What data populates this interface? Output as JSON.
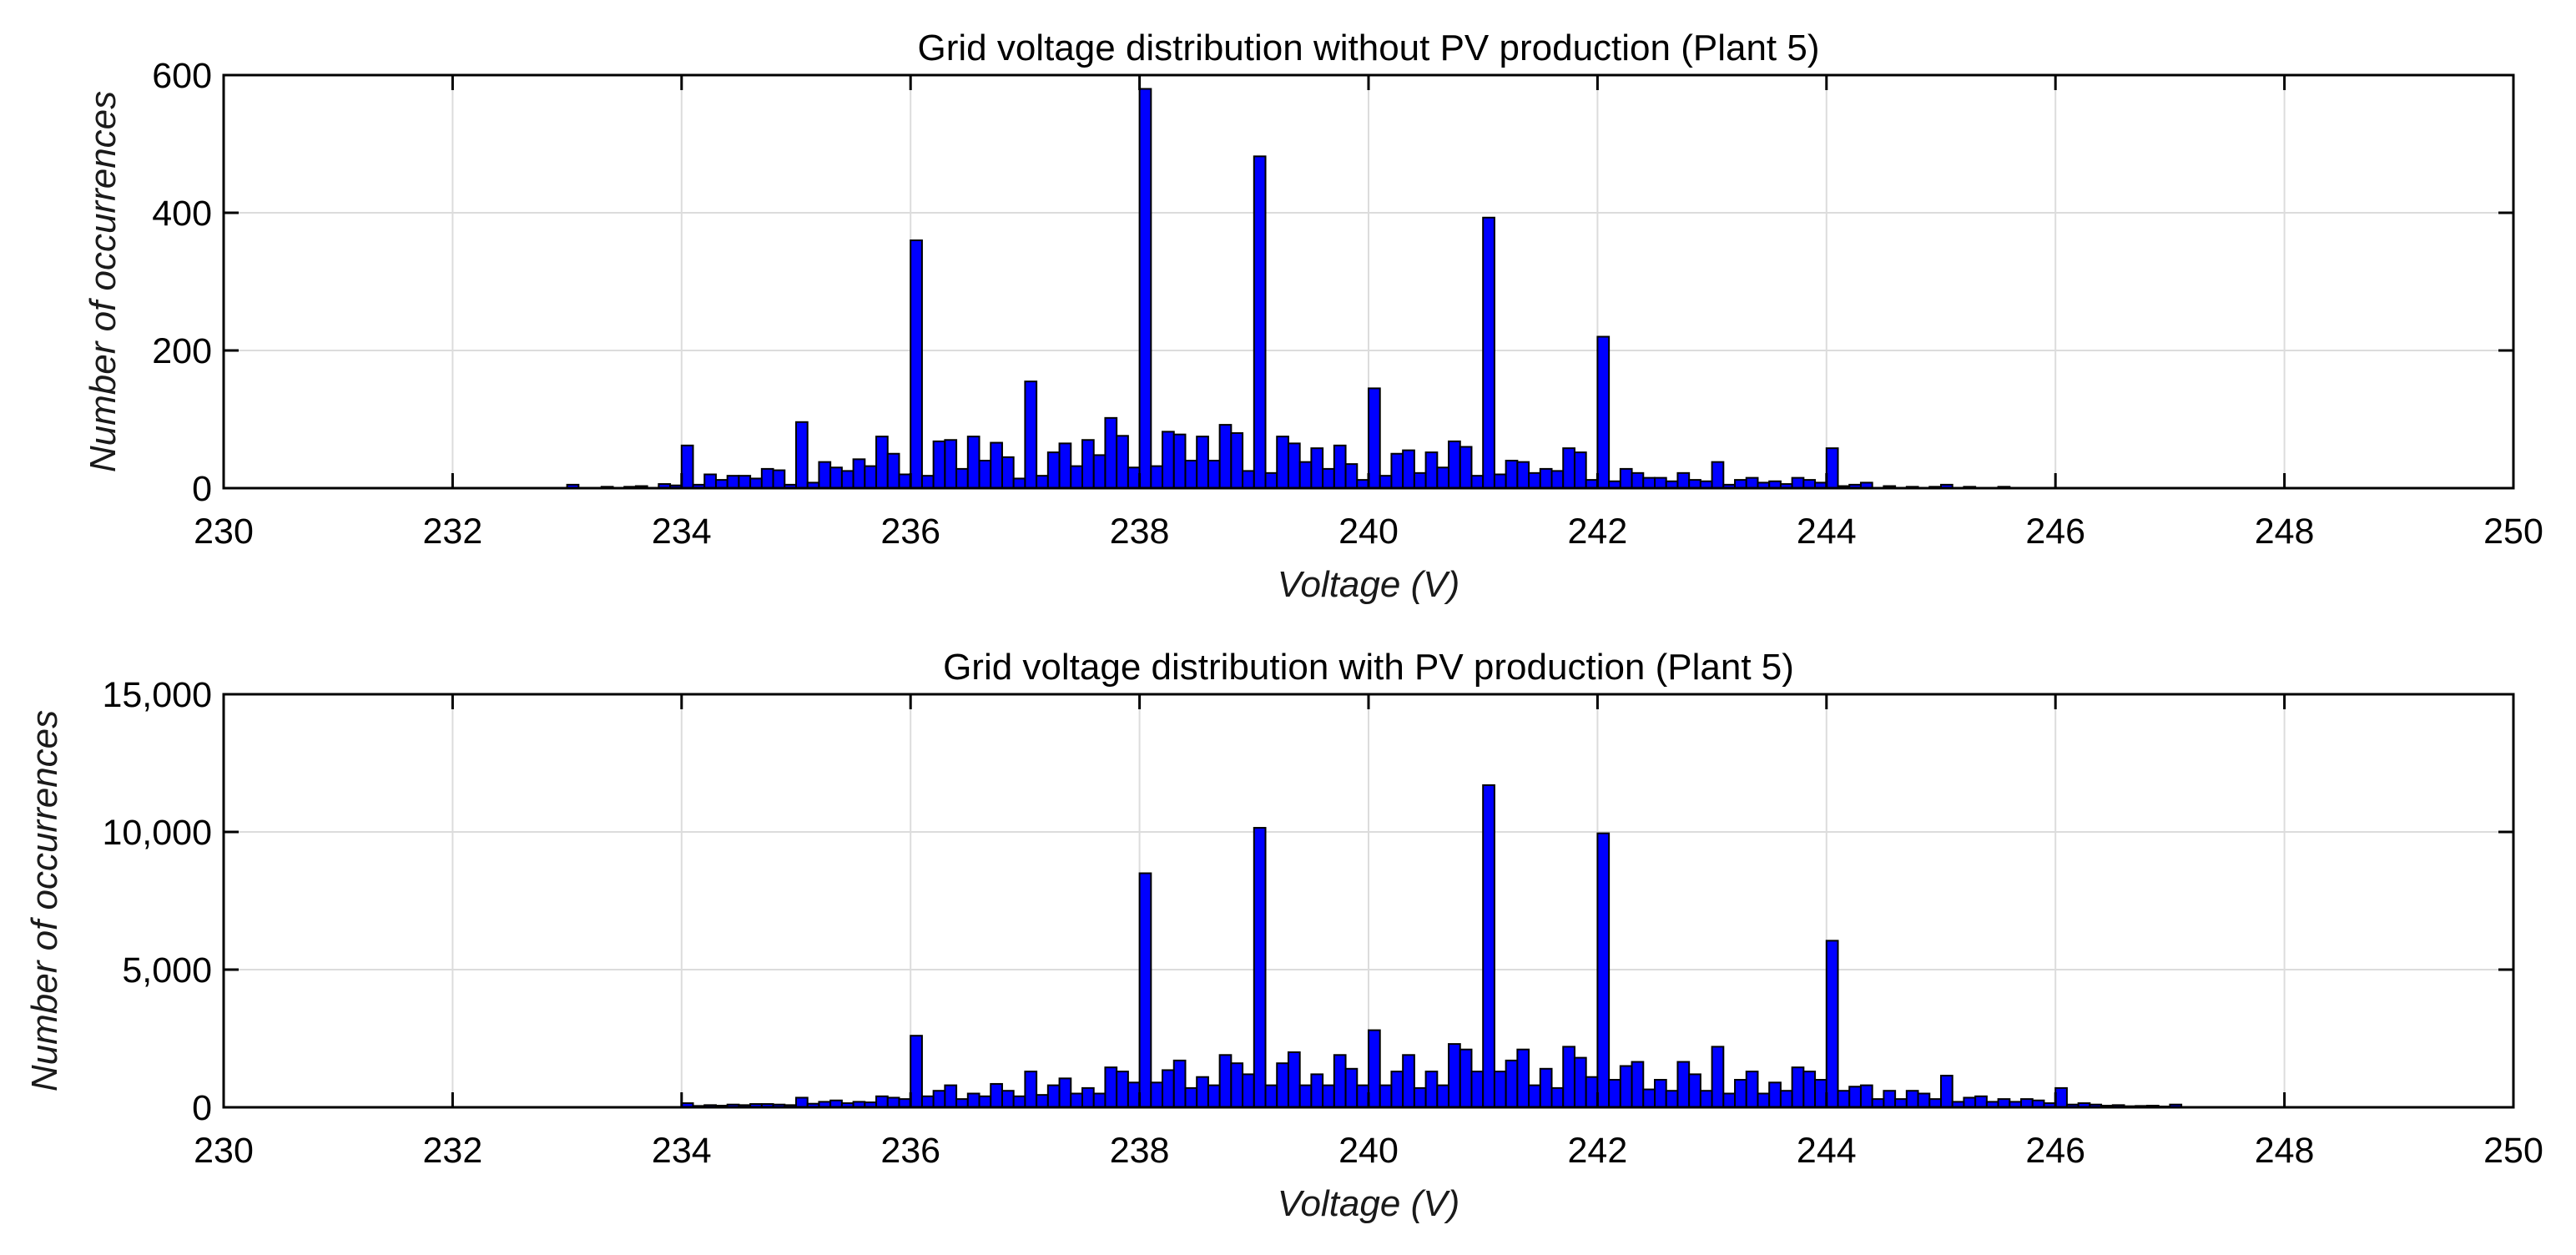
{
  "chart_data": [
    {
      "type": "bar",
      "title": "Grid voltage distribution without PV production (Plant 5)",
      "xlabel": "Voltage (V)",
      "ylabel": "Number of occurrences",
      "xlim": [
        230,
        250
      ],
      "ylim": [
        0,
        600
      ],
      "xticks": [
        "230",
        "232",
        "234",
        "236",
        "238",
        "240",
        "242",
        "244",
        "246",
        "248",
        "250"
      ],
      "yticks": [
        "0",
        "200",
        "400",
        "600"
      ],
      "grid": true,
      "bin_width": 0.1,
      "series": [
        {
          "name": "occurrences",
          "x": [
            233,
            233.3,
            233.5,
            233.6,
            233.8,
            233.9,
            234,
            234.1,
            234.2,
            234.3,
            234.4,
            234.5,
            234.6,
            234.7,
            234.8,
            234.9,
            235,
            235.1,
            235.2,
            235.3,
            235.4,
            235.5,
            235.6,
            235.7,
            235.8,
            235.9,
            236,
            236.1,
            236.2,
            236.3,
            236.4,
            236.5,
            236.6,
            236.7,
            236.8,
            236.9,
            237,
            237.1,
            237.2,
            237.3,
            237.4,
            237.5,
            237.6,
            237.7,
            237.8,
            237.9,
            238,
            238.1,
            238.2,
            238.3,
            238.4,
            238.5,
            238.6,
            238.7,
            238.8,
            238.9,
            239,
            239.1,
            239.2,
            239.3,
            239.4,
            239.5,
            239.6,
            239.7,
            239.8,
            239.9,
            240,
            240.1,
            240.2,
            240.3,
            240.4,
            240.5,
            240.6,
            240.7,
            240.8,
            240.9,
            241,
            241.1,
            241.2,
            241.3,
            241.4,
            241.5,
            241.6,
            241.7,
            241.8,
            241.9,
            242,
            242.1,
            242.2,
            242.3,
            242.4,
            242.5,
            242.6,
            242.7,
            242.8,
            242.9,
            243,
            243.1,
            243.2,
            243.3,
            243.4,
            243.5,
            243.6,
            243.7,
            243.8,
            243.9,
            244,
            244.1,
            244.2,
            244.3,
            244.5,
            244.7,
            244.9,
            245,
            245.2,
            245.5
          ],
          "values": [
            5,
            2,
            2,
            3,
            6,
            4,
            62,
            5,
            20,
            12,
            18,
            18,
            14,
            28,
            26,
            5,
            96,
            8,
            38,
            30,
            25,
            42,
            32,
            75,
            50,
            20,
            360,
            18,
            68,
            70,
            28,
            75,
            40,
            66,
            45,
            14,
            155,
            18,
            52,
            65,
            32,
            70,
            48,
            102,
            76,
            30,
            580,
            32,
            82,
            78,
            40,
            75,
            40,
            92,
            80,
            25,
            482,
            22,
            75,
            65,
            38,
            58,
            28,
            62,
            35,
            12,
            145,
            18,
            50,
            55,
            22,
            52,
            30,
            68,
            60,
            18,
            393,
            20,
            40,
            38,
            22,
            28,
            25,
            58,
            52,
            12,
            220,
            10,
            28,
            22,
            15,
            15,
            10,
            22,
            12,
            10,
            38,
            5,
            12,
            15,
            8,
            10,
            6,
            15,
            12,
            8,
            58,
            3,
            5,
            8,
            3,
            2,
            2,
            5,
            2,
            2
          ]
        }
      ]
    },
    {
      "type": "bar",
      "title": "Grid voltage distribution with PV production (Plant 5)",
      "xlabel": "Voltage (V)",
      "ylabel": "Number of occurrences",
      "xlim": [
        230,
        250
      ],
      "ylim": [
        0,
        15000
      ],
      "xticks": [
        "230",
        "232",
        "234",
        "236",
        "238",
        "240",
        "242",
        "244",
        "246",
        "248",
        "250"
      ],
      "yticks": [
        "0",
        "5,000",
        "10,000",
        "15,000"
      ],
      "grid": true,
      "bin_width": 0.1,
      "series": [
        {
          "name": "occurrences",
          "x": [
            234,
            234.1,
            234.2,
            234.3,
            234.4,
            234.5,
            234.6,
            234.7,
            234.8,
            234.9,
            235,
            235.1,
            235.2,
            235.3,
            235.4,
            235.5,
            235.6,
            235.7,
            235.8,
            235.9,
            236,
            236.1,
            236.2,
            236.3,
            236.4,
            236.5,
            236.6,
            236.7,
            236.8,
            236.9,
            237,
            237.1,
            237.2,
            237.3,
            237.4,
            237.5,
            237.6,
            237.7,
            237.8,
            237.9,
            238,
            238.1,
            238.2,
            238.3,
            238.4,
            238.5,
            238.6,
            238.7,
            238.8,
            238.9,
            239,
            239.1,
            239.2,
            239.3,
            239.4,
            239.5,
            239.6,
            239.7,
            239.8,
            239.9,
            240,
            240.1,
            240.2,
            240.3,
            240.4,
            240.5,
            240.6,
            240.7,
            240.8,
            240.9,
            241,
            241.1,
            241.2,
            241.3,
            241.4,
            241.5,
            241.6,
            241.7,
            241.8,
            241.9,
            242,
            242.1,
            242.2,
            242.3,
            242.4,
            242.5,
            242.6,
            242.7,
            242.8,
            242.9,
            243,
            243.1,
            243.2,
            243.3,
            243.4,
            243.5,
            243.6,
            243.7,
            243.8,
            243.9,
            244,
            244.1,
            244.2,
            244.3,
            244.4,
            244.5,
            244.6,
            244.7,
            244.8,
            244.9,
            245,
            245.1,
            245.2,
            245.3,
            245.4,
            245.5,
            245.6,
            245.7,
            245.8,
            245.9,
            246,
            246.1,
            246.2,
            246.3,
            246.4,
            246.5,
            246.6,
            246.7,
            246.8,
            246.9,
            247
          ],
          "values": [
            150,
            50,
            80,
            60,
            100,
            80,
            120,
            120,
            100,
            80,
            350,
            130,
            200,
            250,
            150,
            200,
            180,
            400,
            350,
            300,
            2600,
            400,
            600,
            800,
            300,
            500,
            400,
            850,
            600,
            400,
            1300,
            450,
            800,
            1050,
            500,
            700,
            500,
            1450,
            1300,
            900,
            8500,
            900,
            1350,
            1700,
            700,
            1100,
            800,
            1900,
            1600,
            1200,
            10150,
            800,
            1600,
            2000,
            800,
            1200,
            800,
            1900,
            1400,
            800,
            2800,
            800,
            1300,
            1900,
            700,
            1300,
            800,
            2300,
            2100,
            1300,
            11700,
            1300,
            1700,
            2100,
            800,
            1400,
            700,
            2200,
            1800,
            1100,
            9950,
            1000,
            1500,
            1650,
            650,
            1000,
            600,
            1650,
            1200,
            600,
            2200,
            500,
            1000,
            1300,
            500,
            900,
            600,
            1450,
            1300,
            1000,
            6050,
            600,
            750,
            800,
            300,
            600,
            300,
            600,
            500,
            300,
            1150,
            200,
            350,
            400,
            200,
            300,
            200,
            300,
            250,
            150,
            700,
            100,
            150,
            100,
            60,
            80,
            40,
            50,
            60,
            30,
            100
          ]
        }
      ]
    }
  ]
}
